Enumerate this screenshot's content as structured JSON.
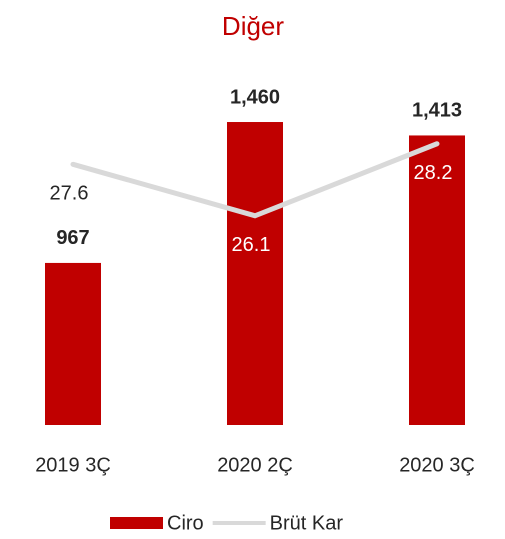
{
  "chart_data": {
    "type": "bar_line",
    "title": "Diğer",
    "categories": [
      "2019 3Ç",
      "2020 2Ç",
      "2020 3Ç"
    ],
    "series": [
      {
        "name": "Ciro",
        "type": "bar",
        "color": "#c00000",
        "values": [
          967,
          1460,
          1413
        ],
        "value_labels": [
          "967",
          "1,460",
          "1,413"
        ]
      },
      {
        "name": "Brüt Kar",
        "type": "line",
        "axis": "y2",
        "color": "#d9d9d9",
        "values": [
          27.6,
          26.1,
          28.2
        ]
      }
    ],
    "ylim": [
      400,
      1600
    ],
    "y2lim": [
      20,
      30
    ],
    "legend": "bottom"
  }
}
